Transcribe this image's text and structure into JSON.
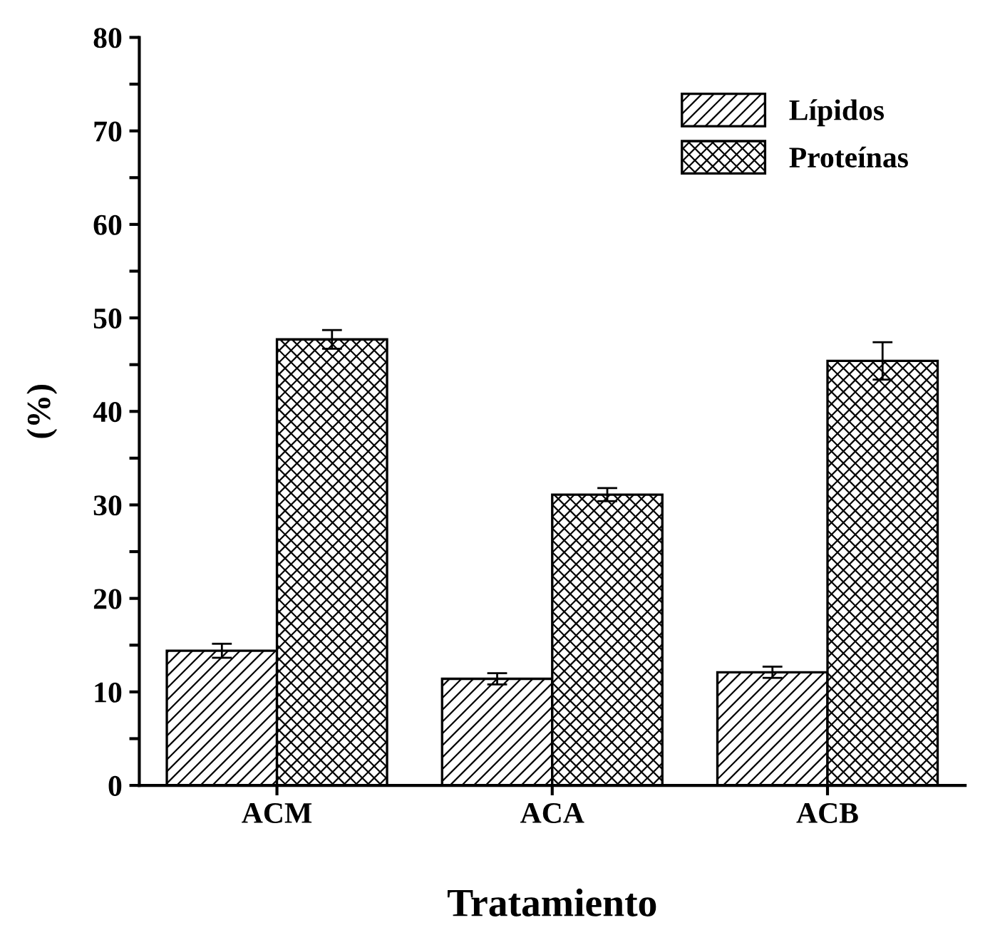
{
  "chart_data": {
    "type": "bar",
    "xlabel": "Tratamiento",
    "ylabel": "(%)",
    "categories": [
      "ACM",
      "ACA",
      "ACB"
    ],
    "series": [
      {
        "name": "Lípidos",
        "color": "#000000",
        "values": [
          14.4,
          11.4,
          12.1
        ],
        "errors": [
          0.75,
          0.6,
          0.6
        ]
      },
      {
        "name": "Proteínas",
        "color": "#000000",
        "values": [
          47.7,
          31.1,
          45.4
        ],
        "errors": [
          1.0,
          0.7,
          2.0
        ]
      }
    ],
    "ylim": [
      0,
      80
    ],
    "yticks": [
      0,
      {
        "value": 5,
        "label": null
      },
      10,
      {
        "value": 15,
        "label": null
      },
      20,
      {
        "value": 25,
        "label": null
      },
      30,
      {
        "value": 35,
        "label": null
      },
      40,
      {
        "value": 45,
        "label": null
      },
      50,
      {
        "value": 55,
        "label": null
      },
      60,
      {
        "value": 65,
        "label": null
      },
      70,
      {
        "value": 75,
        "label": null
      },
      80
    ],
    "grid": false,
    "legend": "top right"
  }
}
